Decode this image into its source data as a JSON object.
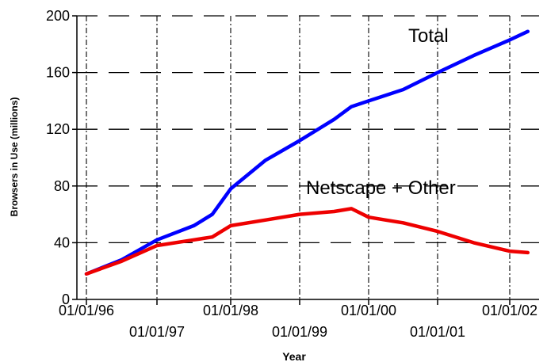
{
  "chart_data": {
    "type": "line",
    "title": "",
    "xlabel": "Year",
    "ylabel": "Browsers in Use (millions)",
    "ylim": [
      0,
      200
    ],
    "yticks": [
      "0",
      "40",
      "80",
      "120",
      "160",
      "200"
    ],
    "xlim": [
      "1995-12-15",
      "1998-03-01"
    ],
    "xticks": [
      "01/01/96",
      "01/01/97",
      "01/01/98",
      "01/01/99",
      "01/01/00",
      "01/01/01",
      "01/01/02"
    ],
    "grid": true,
    "series": [
      {
        "name": "Total",
        "color": "#0000ff",
        "x": [
          "01/01/96",
          "07/01/96",
          "01/01/97",
          "07/01/97",
          "10/01/97",
          "01/01/98",
          "07/01/98",
          "01/01/99",
          "07/01/99",
          "10/01/99",
          "01/01/00",
          "04/01/00",
          "07/01/00",
          "01/01/01",
          "07/01/01",
          "01/01/02",
          "04/01/02"
        ],
        "values": [
          18,
          28,
          42,
          52,
          60,
          78,
          98,
          112,
          127,
          136,
          140,
          144,
          148,
          160,
          172,
          183,
          189
        ]
      },
      {
        "name": "Netscape + Other",
        "color": "#ee0000",
        "x": [
          "01/01/96",
          "07/01/96",
          "01/01/97",
          "07/01/97",
          "10/01/97",
          "01/01/98",
          "07/01/98",
          "01/01/99",
          "07/01/99",
          "10/01/99",
          "01/01/00",
          "04/01/00",
          "07/01/00",
          "01/01/01",
          "07/01/01",
          "01/01/02",
          "04/01/02"
        ],
        "values": [
          18,
          27,
          38,
          42,
          44,
          52,
          56,
          60,
          62,
          64,
          58,
          56,
          54,
          48,
          40,
          34,
          33
        ]
      }
    ]
  }
}
